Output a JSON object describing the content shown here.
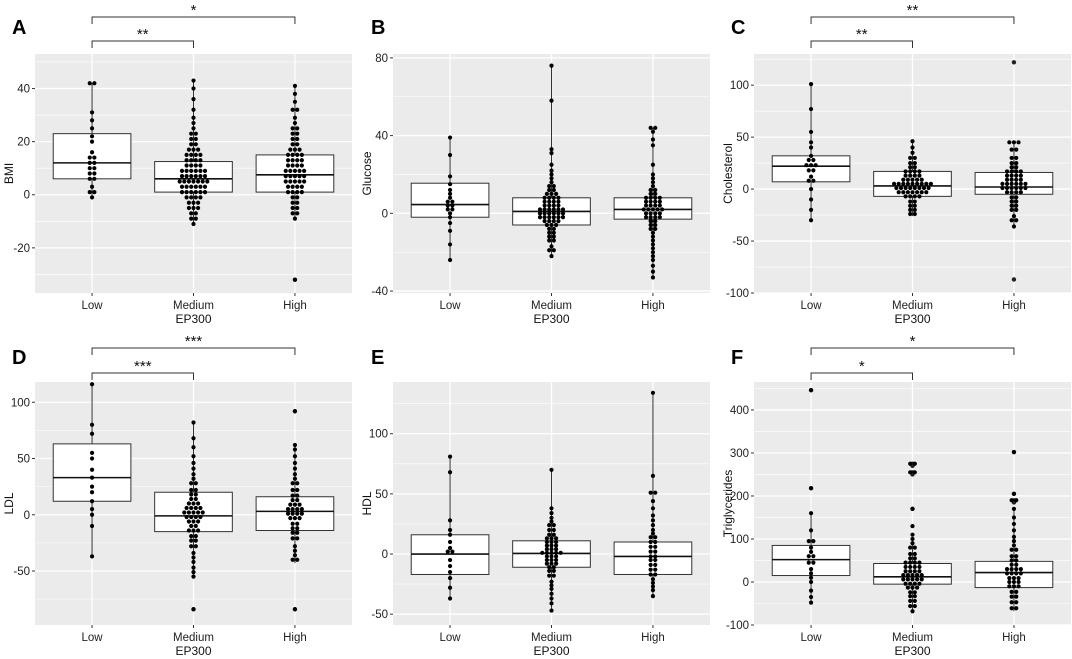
{
  "figure": {
    "background": "#ebebeb",
    "grid_color": "#ffffff",
    "point_color": "#000000",
    "box_fill": "#ffffff"
  },
  "chart_data": [
    {
      "panel": "A",
      "type": "box",
      "ylabel": "BMI",
      "xlabel": "EP300",
      "categories": [
        "Low",
        "Medium",
        "High"
      ],
      "ylim": [
        -37,
        53
      ],
      "yticks": [
        -20,
        0,
        20,
        40
      ],
      "boxes": [
        {
          "q1": 6,
          "median": 12,
          "q3": 23,
          "min": -1,
          "max": 42
        },
        {
          "q1": 1,
          "median": 6,
          "q3": 12.5,
          "min": -11,
          "max": 43
        },
        {
          "q1": 1,
          "median": 7.5,
          "q3": 15,
          "min": -9,
          "max": 41
        }
      ],
      "outliers": [
        [],
        [],
        [
          -32
        ]
      ],
      "points": [
        [
          42,
          42,
          31,
          28,
          25,
          22,
          20,
          16,
          14,
          13,
          12,
          11,
          10,
          9,
          8,
          7,
          6,
          5,
          3,
          1,
          0,
          -1
        ],
        [
          43,
          40,
          36,
          32,
          29,
          27,
          25,
          23,
          22,
          21,
          20,
          19,
          18,
          17,
          16,
          16,
          15,
          15,
          14,
          14,
          13,
          13,
          12,
          12,
          11,
          11,
          10,
          10,
          9,
          9,
          9,
          8,
          8,
          8,
          7,
          7,
          7,
          6,
          6,
          6,
          5,
          5,
          5,
          5,
          4,
          4,
          4,
          3,
          3,
          3,
          2,
          2,
          2,
          1,
          1,
          1,
          0,
          0,
          0,
          -1,
          -1,
          -2,
          -2,
          -3,
          -3,
          -4,
          -5,
          -5,
          -6,
          -7,
          -8,
          -9,
          -10,
          -11
        ],
        [
          41,
          38,
          35,
          32,
          31,
          29,
          27,
          25,
          24,
          23,
          22,
          21,
          20,
          19,
          18,
          17,
          16,
          16,
          15,
          15,
          14,
          14,
          13,
          13,
          12,
          12,
          11,
          11,
          10,
          10,
          9,
          9,
          8,
          8,
          8,
          7,
          7,
          7,
          6,
          6,
          5,
          5,
          5,
          4,
          4,
          3,
          3,
          2,
          2,
          1,
          1,
          0,
          0,
          -1,
          -2,
          -3,
          -4,
          -5,
          -6,
          -7,
          -8,
          -9,
          -32
        ]
      ],
      "brackets": [
        {
          "from": 0,
          "to": 1,
          "label": "**",
          "level": 1
        },
        {
          "from": 0,
          "to": 2,
          "label": "*",
          "level": 2
        }
      ]
    },
    {
      "panel": "B",
      "type": "box",
      "ylabel": "Glucose",
      "xlabel": "EP300",
      "categories": [
        "Low",
        "Medium",
        "High"
      ],
      "ylim": [
        -41,
        82
      ],
      "yticks": [
        -40,
        0,
        40,
        80
      ],
      "boxes": [
        {
          "q1": -2,
          "median": 4.5,
          "q3": 15.5,
          "min": -24,
          "max": 39
        },
        {
          "q1": -6,
          "median": 1,
          "q3": 8,
          "min": -22,
          "max": 76
        },
        {
          "q1": -3,
          "median": 2,
          "q3": 8,
          "min": -33,
          "max": 44
        }
      ],
      "outliers": [
        [],
        [],
        []
      ],
      "points": [
        [
          39,
          30,
          19,
          15,
          12,
          10,
          8,
          6,
          5,
          4,
          3,
          2,
          1,
          0,
          -2,
          -5,
          -9,
          -16,
          -24
        ],
        [
          76,
          58,
          33,
          31,
          25,
          22,
          20,
          18,
          16,
          14,
          13,
          12,
          11,
          10,
          9,
          9,
          8,
          8,
          7,
          7,
          6,
          6,
          5,
          5,
          4,
          4,
          3,
          3,
          2,
          2,
          2,
          1,
          1,
          1,
          0,
          0,
          0,
          -1,
          -1,
          -1,
          -2,
          -2,
          -2,
          -3,
          -3,
          -3,
          -4,
          -4,
          -5,
          -5,
          -6,
          -6,
          -7,
          -8,
          -9,
          -10,
          -11,
          -12,
          -13,
          -14,
          -15,
          -17,
          -19,
          -20,
          -22
        ],
        [
          44,
          43,
          42,
          38,
          35,
          25,
          20,
          18,
          16,
          14,
          12,
          11,
          10,
          9,
          8,
          8,
          7,
          7,
          6,
          6,
          5,
          5,
          4,
          4,
          3,
          3,
          2,
          2,
          2,
          1,
          1,
          0,
          0,
          -1,
          -1,
          -2,
          -2,
          -3,
          -3,
          -4,
          -5,
          -6,
          -7,
          -8,
          -9,
          -10,
          -12,
          -14,
          -16,
          -18,
          -20,
          -22,
          -24,
          -27,
          -30,
          -33
        ]
      ],
      "brackets": []
    },
    {
      "panel": "C",
      "type": "box",
      "ylabel": "Cholesterol",
      "xlabel": "EP300",
      "categories": [
        "Low",
        "Medium",
        "High"
      ],
      "ylim": [
        -100,
        130
      ],
      "yticks": [
        -100,
        -50,
        0,
        50,
        100
      ],
      "boxes": [
        {
          "q1": 7,
          "median": 22,
          "q3": 32,
          "min": -30,
          "max": 101
        },
        {
          "q1": -7,
          "median": 3,
          "q3": 17,
          "min": -26,
          "max": 46
        },
        {
          "q1": -5,
          "median": 2,
          "q3": 16,
          "min": -36,
          "max": 45
        }
      ],
      "outliers": [
        [],
        [],
        [
          122,
          -87
        ]
      ],
      "points": [
        [
          101,
          77,
          55,
          45,
          40,
          32,
          28,
          25,
          23,
          22,
          20,
          18,
          15,
          12,
          8,
          5,
          0,
          -10,
          -20,
          -30
        ],
        [
          46,
          40,
          35,
          30,
          27,
          25,
          23,
          21,
          19,
          17,
          16,
          15,
          14,
          13,
          12,
          11,
          10,
          9,
          8,
          7,
          6,
          6,
          5,
          5,
          4,
          4,
          3,
          3,
          3,
          2,
          2,
          1,
          1,
          0,
          0,
          -1,
          -1,
          -2,
          -2,
          -3,
          -3,
          -4,
          -4,
          -5,
          -5,
          -6,
          -7,
          -8,
          -9,
          -10,
          -12,
          -14,
          -16,
          -18,
          -20,
          -22,
          -24,
          -26
        ],
        [
          45,
          44,
          42,
          38,
          35,
          30,
          27,
          25,
          23,
          21,
          19,
          17,
          16,
          15,
          14,
          13,
          12,
          11,
          10,
          9,
          8,
          7,
          6,
          5,
          4,
          3,
          3,
          2,
          2,
          1,
          1,
          0,
          0,
          -1,
          -2,
          -3,
          -4,
          -5,
          -6,
          -8,
          -10,
          -12,
          -14,
          -16,
          -18,
          -20,
          -23,
          -26,
          -30,
          -33,
          -36
        ]
      ],
      "brackets": [
        {
          "from": 0,
          "to": 1,
          "label": "**",
          "level": 1
        },
        {
          "from": 0,
          "to": 2,
          "label": "**",
          "level": 2
        }
      ]
    },
    {
      "panel": "D",
      "type": "box",
      "ylabel": "LDL",
      "xlabel": "EP300",
      "categories": [
        "Low",
        "Medium",
        "High"
      ],
      "ylim": [
        -98,
        118
      ],
      "yticks": [
        -50,
        0,
        50,
        100
      ],
      "boxes": [
        {
          "q1": 12,
          "median": 33,
          "q3": 63,
          "min": -37,
          "max": 116
        },
        {
          "q1": -15,
          "median": -1,
          "q3": 20,
          "min": -55,
          "max": 82
        },
        {
          "q1": -14,
          "median": 3,
          "q3": 16,
          "min": -43,
          "max": 62
        }
      ],
      "outliers": [
        [],
        [
          -84
        ],
        [
          92,
          -84
        ]
      ],
      "points": [
        [
          116,
          80,
          72,
          55,
          50,
          40,
          33,
          25,
          20,
          12,
          5,
          0,
          -10,
          -37
        ],
        [
          82,
          68,
          60,
          52,
          46,
          41,
          36,
          32,
          28,
          25,
          22,
          20,
          18,
          16,
          14,
          12,
          10,
          9,
          8,
          6,
          5,
          4,
          3,
          2,
          1,
          0,
          0,
          -1,
          -2,
          -3,
          -4,
          -5,
          -6,
          -7,
          -8,
          -10,
          -12,
          -14,
          -15,
          -17,
          -19,
          -21,
          -23,
          -25,
          -28,
          -31,
          -34,
          -38,
          -42,
          -47,
          -51,
          -55,
          -84
        ],
        [
          92,
          62,
          58,
          52,
          46,
          41,
          36,
          32,
          28,
          25,
          22,
          19,
          17,
          15,
          13,
          11,
          9,
          8,
          6,
          5,
          4,
          3,
          2,
          1,
          0,
          -1,
          -2,
          -3,
          -4,
          -6,
          -8,
          -10,
          -12,
          -14,
          -16,
          -18,
          -21,
          -24,
          -28,
          -32,
          -36,
          -40,
          -43,
          -84
        ]
      ],
      "brackets": [
        {
          "from": 0,
          "to": 1,
          "label": "***",
          "level": 1
        },
        {
          "from": 0,
          "to": 2,
          "label": "***",
          "level": 2
        }
      ]
    },
    {
      "panel": "E",
      "type": "box",
      "ylabel": "HDL",
      "xlabel": "EP300",
      "categories": [
        "Low",
        "Medium",
        "High"
      ],
      "ylim": [
        -59,
        143
      ],
      "yticks": [
        -50,
        0,
        50,
        100
      ],
      "boxes": [
        {
          "q1": -17,
          "median": 0,
          "q3": 16,
          "min": -37,
          "max": 81
        },
        {
          "q1": -11,
          "median": 0.5,
          "q3": 11,
          "min": -47,
          "max": 70
        },
        {
          "q1": -17,
          "median": -2,
          "q3": 10,
          "min": -35,
          "max": 134
        }
      ],
      "outliers": [
        [],
        [],
        []
      ],
      "points": [
        [
          81,
          68,
          28,
          20,
          16,
          10,
          5,
          2,
          0,
          -5,
          -10,
          -15,
          -20,
          -28,
          -37
        ],
        [
          70,
          38,
          34,
          30,
          27,
          24,
          22,
          20,
          18,
          16,
          14,
          13,
          12,
          11,
          10,
          9,
          8,
          7,
          6,
          5,
          4,
          3,
          2,
          1,
          1,
          0,
          0,
          -1,
          -2,
          -3,
          -4,
          -5,
          -6,
          -7,
          -8,
          -9,
          -10,
          -11,
          -12,
          -14,
          -16,
          -18,
          -20,
          -23,
          -26,
          -29,
          -33,
          -37,
          -41,
          -47
        ],
        [
          134,
          65,
          51,
          50,
          44,
          38,
          32,
          28,
          24,
          20,
          17,
          14,
          12,
          10,
          8,
          6,
          4,
          2,
          0,
          -2,
          -3,
          -5,
          -7,
          -9,
          -11,
          -13,
          -15,
          -17,
          -19,
          -21,
          -24,
          -27,
          -30,
          -35
        ]
      ],
      "brackets": []
    },
    {
      "panel": "F",
      "type": "box",
      "ylabel": "Triglycerides",
      "xlabel": "EP300",
      "categories": [
        "Low",
        "Medium",
        "High"
      ],
      "ylim": [
        -100,
        465
      ],
      "yticks": [
        -100,
        0,
        100,
        200,
        300,
        400
      ],
      "boxes": [
        {
          "q1": 15,
          "median": 52,
          "q3": 85,
          "min": -48,
          "max": 160
        },
        {
          "q1": -5,
          "median": 12,
          "q3": 43,
          "min": -68,
          "max": 100
        },
        {
          "q1": -13,
          "median": 22,
          "q3": 48,
          "min": -68,
          "max": 170
        }
      ],
      "outliers": [
        [
          446,
          218
        ],
        [
          275,
          270,
          255,
          250,
          170
        ],
        [
          302,
          205,
          190,
          185
        ]
      ],
      "points": [
        [
          446,
          218,
          160,
          120,
          95,
          88,
          80,
          70,
          60,
          52,
          45,
          40,
          30,
          20,
          10,
          0,
          -20,
          -35,
          -48
        ],
        [
          275,
          270,
          255,
          250,
          170,
          130,
          110,
          100,
          90,
          80,
          72,
          65,
          60,
          55,
          50,
          45,
          42,
          40,
          38,
          35,
          32,
          30,
          28,
          25,
          22,
          20,
          18,
          16,
          14,
          12,
          10,
          8,
          6,
          4,
          2,
          0,
          -2,
          -4,
          -6,
          -8,
          -10,
          -13,
          -16,
          -20,
          -24,
          -28,
          -33,
          -38,
          -44,
          -50,
          -56,
          -62,
          -68
        ],
        [
          302,
          205,
          190,
          185,
          170,
          150,
          135,
          120,
          105,
          95,
          85,
          75,
          68,
          60,
          55,
          50,
          45,
          40,
          35,
          30,
          27,
          24,
          22,
          20,
          18,
          15,
          12,
          9,
          6,
          3,
          0,
          -3,
          -6,
          -10,
          -13,
          -18,
          -23,
          -28,
          -34,
          -40,
          -47,
          -54,
          -61,
          -68
        ]
      ],
      "brackets": [
        {
          "from": 0,
          "to": 1,
          "label": "*",
          "level": 1
        },
        {
          "from": 0,
          "to": 2,
          "label": "*",
          "level": 2
        }
      ]
    }
  ]
}
